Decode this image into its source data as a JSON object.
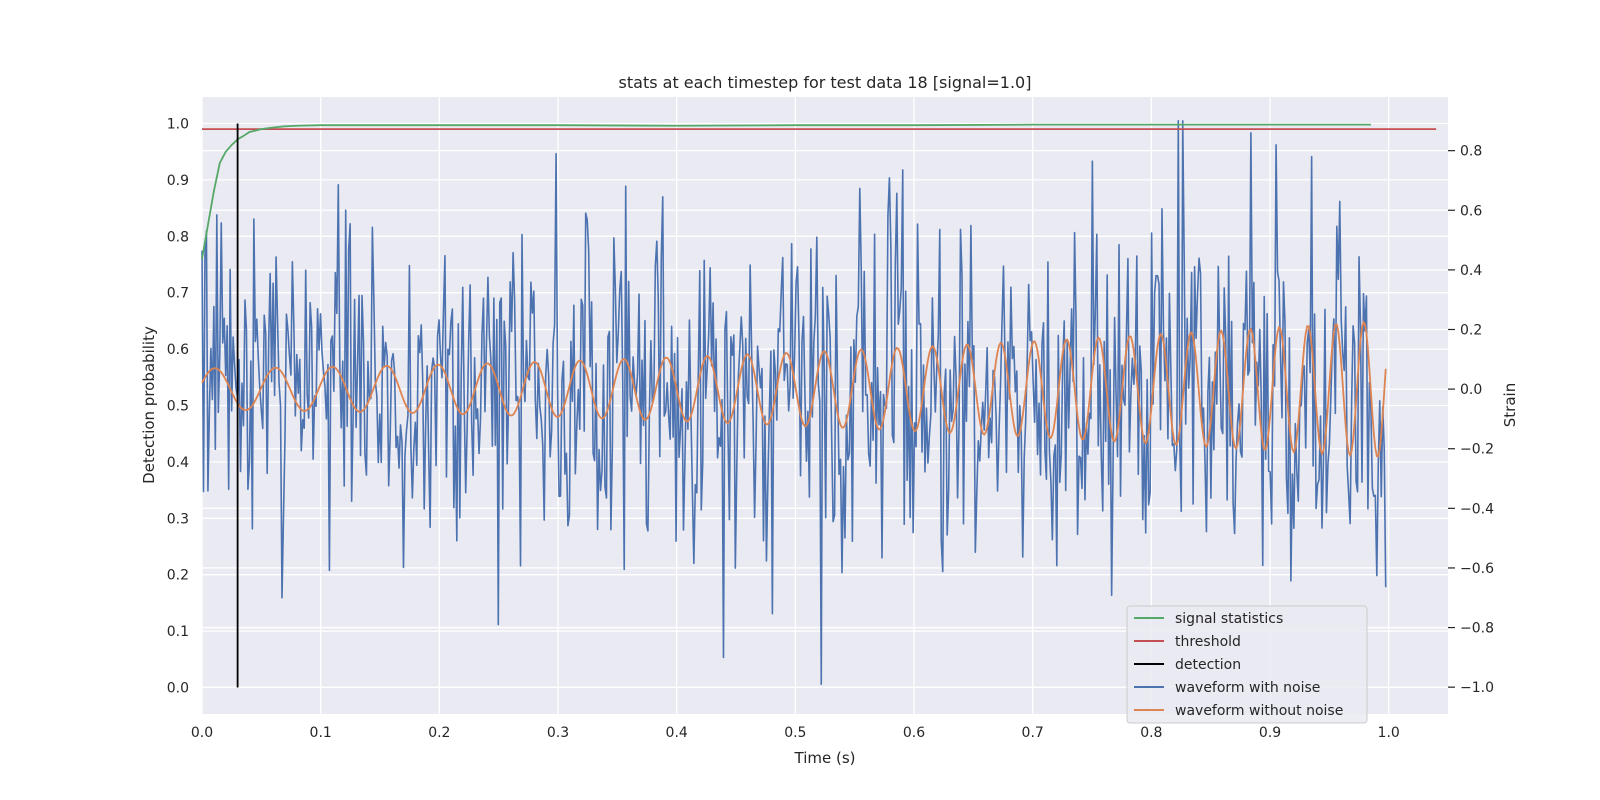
{
  "chart_data": {
    "type": "line",
    "title": "stats at each timestep for test data 18 [signal=1.0]",
    "xlabel": "Time (s)",
    "ylabel_left": "Detection probability",
    "ylabel_right": "Strain",
    "xlim": [
      0.0,
      1.05
    ],
    "ylim_left": [
      -0.047,
      1.047
    ],
    "ylim_right": [
      -1.09,
      0.98
    ],
    "x_ticks": [
      "0.0",
      "0.1",
      "0.2",
      "0.3",
      "0.4",
      "0.5",
      "0.6",
      "0.7",
      "0.8",
      "0.9",
      "1.0"
    ],
    "y_left_ticks": [
      "0.0",
      "0.1",
      "0.2",
      "0.3",
      "0.4",
      "0.5",
      "0.6",
      "0.7",
      "0.8",
      "0.9",
      "1.0"
    ],
    "y_right_ticks": [
      "−1.0",
      "−0.8",
      "−0.6",
      "−0.4",
      "−0.2",
      "0.0",
      "0.2",
      "0.4",
      "0.6",
      "0.8"
    ],
    "grid": true,
    "legend_position": "lower-right",
    "colors": {
      "signal_statistics": "#55a868",
      "threshold": "#c44e52",
      "detection": "#000000",
      "waveform_with_noise": "#4c72b0",
      "waveform_without_noise": "#dd8452",
      "plot_background": "#eaeaf2",
      "grid": "#ffffff"
    },
    "series": [
      {
        "name": "signal statistics",
        "axis": "left",
        "x": [
          0.0,
          0.005,
          0.01,
          0.015,
          0.02,
          0.025,
          0.03,
          0.035,
          0.04,
          0.05,
          0.06,
          0.07,
          0.08,
          0.1,
          0.2,
          0.3,
          0.4,
          0.5,
          0.6,
          0.7,
          0.8,
          0.9,
          0.985
        ],
        "y": [
          0.76,
          0.82,
          0.88,
          0.93,
          0.95,
          0.962,
          0.972,
          0.978,
          0.985,
          0.99,
          0.993,
          0.995,
          0.996,
          0.997,
          0.997,
          0.997,
          0.996,
          0.997,
          0.997,
          0.998,
          0.998,
          0.998,
          0.998
        ]
      },
      {
        "name": "threshold",
        "axis": "left",
        "x": [
          0.0,
          1.04
        ],
        "y": [
          0.99,
          0.99
        ]
      },
      {
        "name": "detection",
        "axis": "left",
        "x": [
          0.03,
          0.03
        ],
        "y": [
          0.0,
          1.0
        ]
      },
      {
        "name": "waveform with noise",
        "axis": "right",
        "x_range": [
          0.0,
          0.9975
        ],
        "noise_std": 0.27,
        "peaks": [
          {
            "x": 0.823,
            "y": 0.9
          },
          {
            "x": 0.826,
            "y": 0.9
          },
          {
            "x": 0.299,
            "y": 0.79
          },
          {
            "x": 0.935,
            "y": 0.78
          },
          {
            "x": 0.25,
            "y": -0.79
          },
          {
            "x": 0.522,
            "y": -0.99
          },
          {
            "x": 0.067,
            "y": -0.7
          },
          {
            "x": 0.996,
            "y": -0.2
          }
        ]
      },
      {
        "name": "waveform without noise",
        "axis": "right",
        "x_range": [
          0.0,
          0.9975
        ],
        "amplitude_start": 0.07,
        "amplitude_end": 0.23,
        "cycles": 31
      }
    ]
  }
}
